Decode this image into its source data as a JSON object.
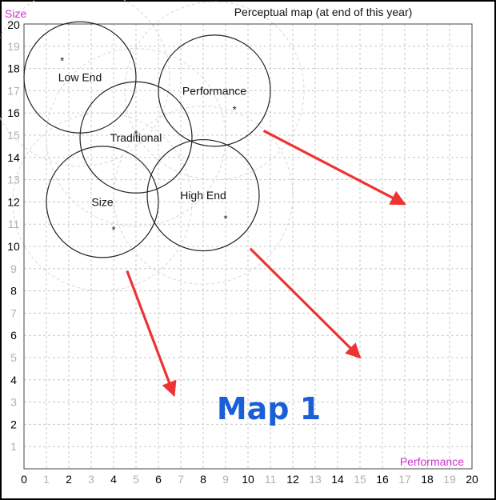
{
  "chart_data": {
    "type": "scatter",
    "title": "Perceptual map (at end of this year)",
    "xlabel": "Performance",
    "ylabel": "Size",
    "xlim": [
      0,
      20
    ],
    "ylim": [
      0,
      20
    ],
    "ticks": [
      "0",
      "1",
      "2",
      "3",
      "4",
      "5",
      "6",
      "7",
      "8",
      "9",
      "10",
      "11",
      "12",
      "13",
      "14",
      "15",
      "16",
      "17",
      "18",
      "19",
      "20"
    ],
    "grid": true,
    "segments": [
      {
        "name": "Low End",
        "center_x": 2.5,
        "center_y": 17.6,
        "radius": 2.5,
        "ideal_x": 1.7,
        "ideal_y": 18.4
      },
      {
        "name": "Performance",
        "center_x": 8.5,
        "center_y": 17.0,
        "radius": 2.5,
        "ideal_x": 9.4,
        "ideal_y": 16.2
      },
      {
        "name": "Traditional",
        "center_x": 5.0,
        "center_y": 14.9,
        "radius": 2.5,
        "ideal_x": 5.0,
        "ideal_y": 15.1
      },
      {
        "name": "Size",
        "center_x": 3.5,
        "center_y": 12.0,
        "radius": 2.5,
        "ideal_x": 4.0,
        "ideal_y": 10.8
      },
      {
        "name": "High End",
        "center_x": 8.0,
        "center_y": 12.3,
        "radius": 2.5,
        "ideal_x": 9.0,
        "ideal_y": 11.3
      }
    ],
    "arrows": [
      {
        "from": [
          10.7,
          15.2
        ],
        "to": [
          17.0,
          11.9
        ]
      },
      {
        "from": [
          10.1,
          9.9
        ],
        "to": [
          15.0,
          5.0
        ]
      },
      {
        "from": [
          4.6,
          8.9
        ],
        "to": [
          6.7,
          3.3
        ]
      }
    ]
  },
  "caption": "Map 1",
  "colors": {
    "axis_name": "#cc33cc",
    "tick_even": "#000000",
    "tick_odd": "#b0b0b0",
    "grid": "#c8c8c8",
    "circle": "#222222",
    "ghost_circle": "#d8d8d8",
    "arrow": "#ee3333",
    "caption": "#1a5fd6"
  }
}
